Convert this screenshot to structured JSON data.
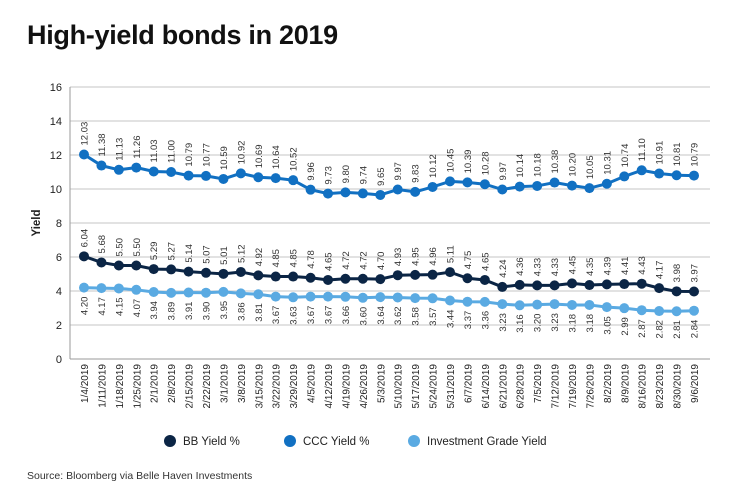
{
  "chart_data": {
    "type": "line",
    "title": "High-yield bonds in 2019",
    "source": "Source: Bloomberg via Belle Haven Investments",
    "ylabel": "Yield",
    "xlabel": "",
    "ylim": [
      0,
      16
    ],
    "yticks": [
      0,
      2,
      4,
      6,
      8,
      10,
      12,
      14,
      16
    ],
    "grid": true,
    "legend_position": "bottom",
    "categories": [
      "1/4/2019",
      "1/11/2019",
      "1/18/2019",
      "1/25/2019",
      "2/1/2019",
      "2/8/2019",
      "2/15/2019",
      "2/22/2019",
      "3/1/2019",
      "3/8/2019",
      "3/15/2019",
      "3/22/2019",
      "3/29/2019",
      "4/5/2019",
      "4/12/2019",
      "4/19/2019",
      "4/26/2019",
      "5/3/2019",
      "5/10/2019",
      "5/17/2019",
      "5/24/2019",
      "5/31/2019",
      "6/7/2019",
      "6/14/2019",
      "6/21/2019",
      "6/28/2019",
      "7/5/2019",
      "7/12/2019",
      "7/19/2019",
      "7/26/2019",
      "8/2/2019",
      "8/9/2019",
      "8/16/2019",
      "8/23/2019",
      "8/30/2019",
      "9/6/2019"
    ],
    "series": [
      {
        "name": "BB Yield %",
        "color": "#0b2545",
        "label_position": "above",
        "values": [
          6.04,
          5.68,
          5.5,
          5.5,
          5.29,
          5.27,
          5.14,
          5.07,
          5.01,
          5.12,
          4.92,
          4.85,
          4.85,
          4.78,
          4.65,
          4.72,
          4.72,
          4.7,
          4.93,
          4.95,
          4.96,
          5.11,
          4.75,
          4.65,
          4.24,
          4.36,
          4.33,
          4.33,
          4.45,
          4.35,
          4.39,
          4.41,
          4.43,
          4.17,
          3.98,
          3.97
        ]
      },
      {
        "name": "CCC Yield %",
        "color": "#1170c2",
        "label_position": "above",
        "values": [
          12.03,
          11.38,
          11.13,
          11.26,
          11.03,
          11.0,
          10.79,
          10.77,
          10.59,
          10.92,
          10.69,
          10.64,
          10.52,
          9.96,
          9.73,
          9.8,
          9.74,
          9.65,
          9.97,
          9.83,
          10.12,
          10.45,
          10.39,
          10.28,
          9.97,
          10.14,
          10.18,
          10.38,
          10.2,
          10.05,
          10.31,
          10.74,
          11.1,
          10.91,
          10.81,
          10.79
        ]
      },
      {
        "name": "Investment Grade Yield",
        "color": "#5aaae2",
        "label_position": "below",
        "values": [
          4.2,
          4.17,
          4.15,
          4.07,
          3.94,
          3.89,
          3.91,
          3.9,
          3.95,
          3.86,
          3.81,
          3.67,
          3.63,
          3.67,
          3.67,
          3.66,
          3.6,
          3.64,
          3.62,
          3.58,
          3.57,
          3.44,
          3.37,
          3.36,
          3.23,
          3.16,
          3.2,
          3.23,
          3.18,
          3.18,
          3.05,
          2.99,
          2.87,
          2.82,
          2.81,
          2.84
        ]
      }
    ]
  }
}
